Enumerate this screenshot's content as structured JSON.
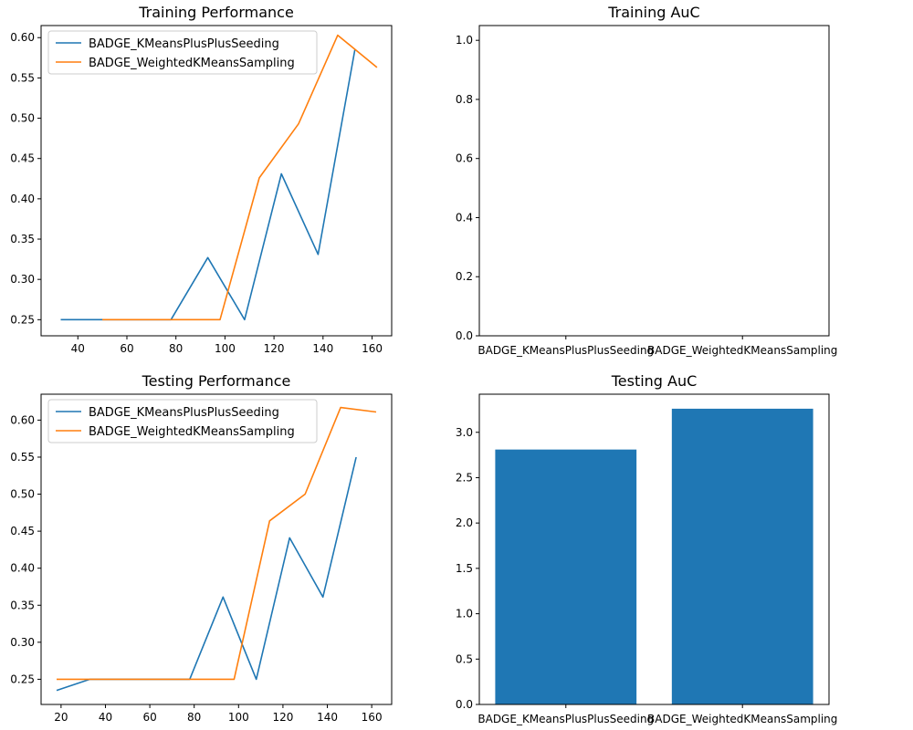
{
  "colors": {
    "series_blue": "#1f77b4",
    "series_orange": "#ff7f0e",
    "bar": "#1f77b4"
  },
  "chart_data": [
    {
      "type": "line",
      "title": "Training Performance",
      "xlabel": "",
      "ylabel": "",
      "xlim": [
        25,
        168
      ],
      "ylim": [
        0.23,
        0.615
      ],
      "xticks": [
        40,
        60,
        80,
        100,
        120,
        140,
        160
      ],
      "yticks": [
        0.25,
        0.3,
        0.35,
        0.4,
        0.45,
        0.5,
        0.55,
        0.6
      ],
      "legend": "top-left",
      "grid": false,
      "series": [
        {
          "name": "BADGE_KMeansPlusPlusSeeding",
          "x": [
            33,
            48,
            63,
            78,
            93,
            108,
            123,
            138,
            153
          ],
          "y": [
            0.25,
            0.25,
            0.25,
            0.25,
            0.327,
            0.25,
            0.431,
            0.331,
            0.585
          ]
        },
        {
          "name": "BADGE_WeightedKMeansSampling",
          "x": [
            50,
            66,
            82,
            98,
            114,
            130,
            146,
            162
          ],
          "y": [
            0.25,
            0.25,
            0.25,
            0.25,
            0.426,
            0.493,
            0.603,
            0.563
          ]
        }
      ]
    },
    {
      "type": "bar",
      "title": "Training AuC",
      "xlabel": "",
      "ylabel": "",
      "categories": [
        "BADGE_KMeansPlusPlusSeeding",
        "BADGE_WeightedKMeansSampling"
      ],
      "values": [
        0,
        0
      ],
      "ylim": [
        0,
        1.05
      ],
      "yticks": [
        0.0,
        0.2,
        0.4,
        0.6,
        0.8,
        1.0
      ],
      "grid": false
    },
    {
      "type": "line",
      "title": "Testing Performance",
      "xlabel": "",
      "ylabel": "",
      "xlim": [
        11,
        169
      ],
      "ylim": [
        0.216,
        0.635
      ],
      "xticks": [
        20,
        40,
        60,
        80,
        100,
        120,
        140,
        160
      ],
      "yticks": [
        0.25,
        0.3,
        0.35,
        0.4,
        0.45,
        0.5,
        0.55,
        0.6
      ],
      "legend": "top-left",
      "grid": false,
      "series": [
        {
          "name": "BADGE_KMeansPlusPlusSeeding",
          "x": [
            18,
            33,
            48,
            63,
            78,
            93,
            108,
            123,
            138,
            153
          ],
          "y": [
            0.235,
            0.25,
            0.25,
            0.25,
            0.25,
            0.361,
            0.25,
            0.441,
            0.361,
            0.55
          ]
        },
        {
          "name": "BADGE_WeightedKMeansSampling",
          "x": [
            18,
            34,
            50,
            66,
            82,
            98,
            114,
            130,
            146,
            162
          ],
          "y": [
            0.25,
            0.25,
            0.25,
            0.25,
            0.25,
            0.25,
            0.464,
            0.5,
            0.617,
            0.611
          ]
        }
      ]
    },
    {
      "type": "bar",
      "title": "Testing AuC",
      "xlabel": "",
      "ylabel": "",
      "categories": [
        "BADGE_KMeansPlusPlusSeeding",
        "BADGE_WeightedKMeansSampling"
      ],
      "values": [
        2.81,
        3.26
      ],
      "ylim": [
        0,
        3.42
      ],
      "yticks": [
        0.0,
        0.5,
        1.0,
        1.5,
        2.0,
        2.5,
        3.0
      ],
      "grid": false
    }
  ]
}
